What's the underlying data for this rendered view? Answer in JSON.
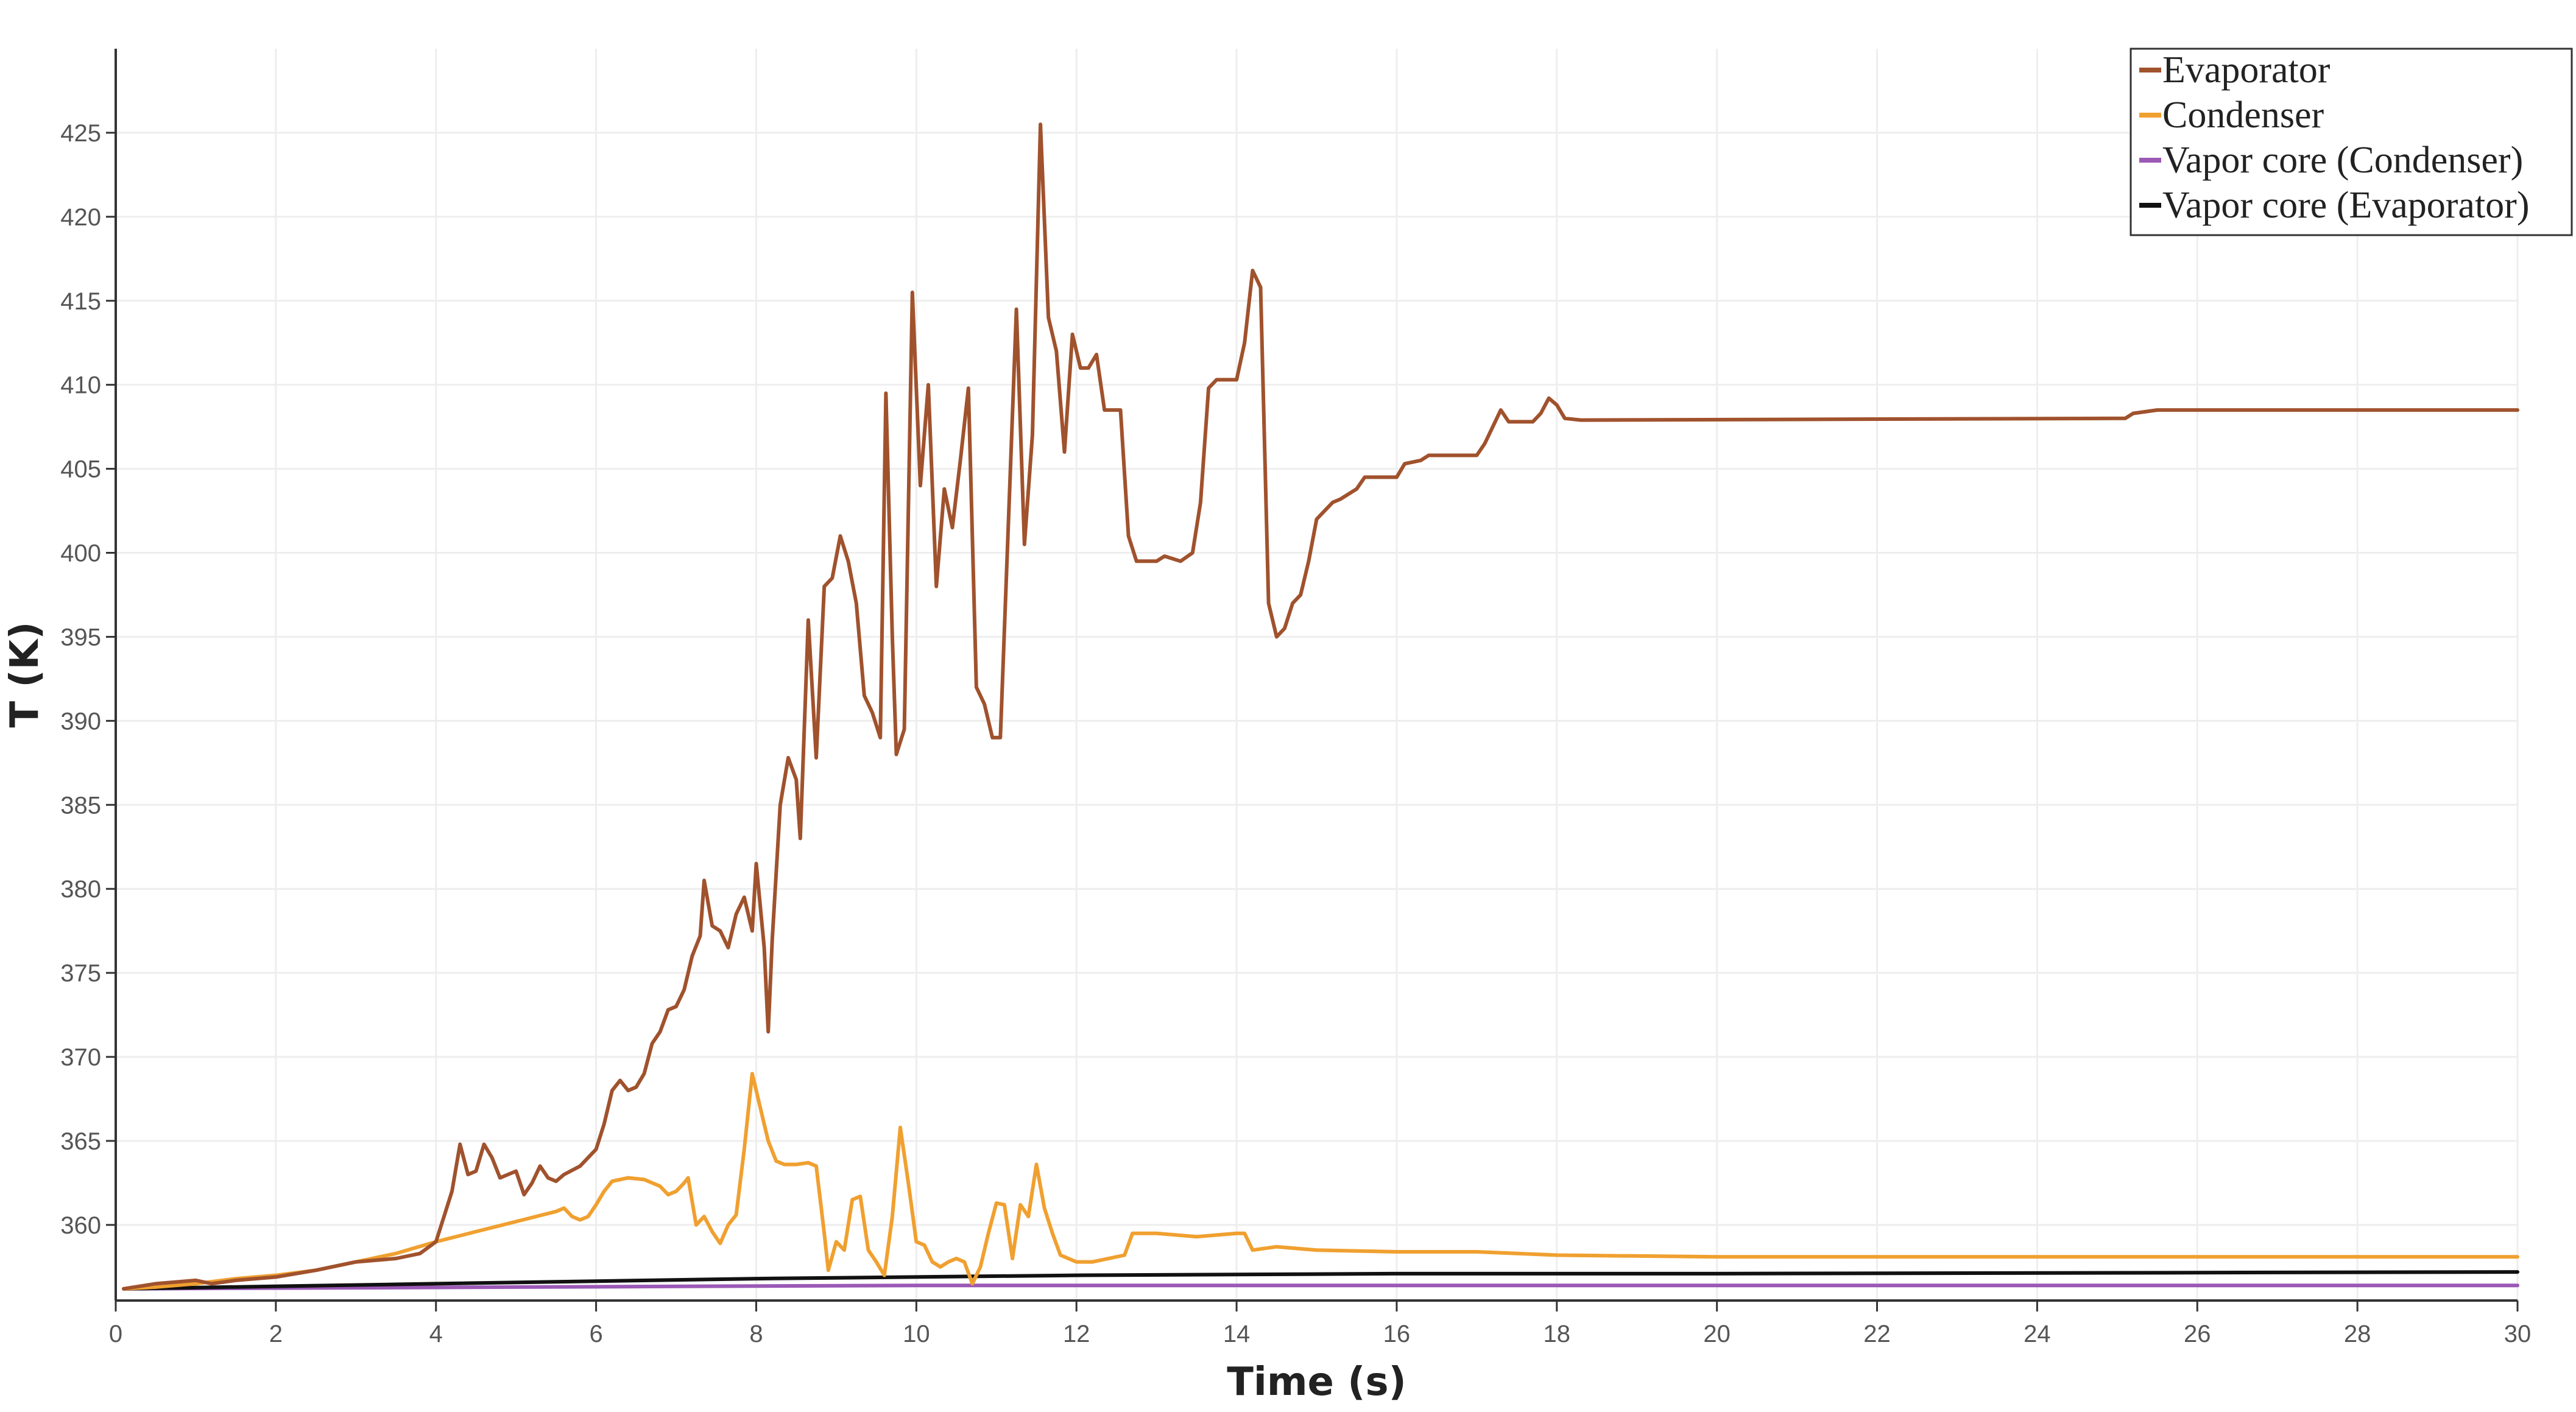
{
  "chart_data": {
    "type": "line",
    "title": "",
    "xlabel": "Time (s)",
    "ylabel": "T (K)",
    "xlim": [
      0,
      30
    ],
    "ylim": [
      355.5,
      430
    ],
    "grid": true,
    "legend_position": "top-right",
    "x_ticks": [
      "0",
      "2",
      "4",
      "6",
      "8",
      "10",
      "12",
      "14",
      "16",
      "18",
      "20",
      "22",
      "24",
      "26",
      "28",
      "30"
    ],
    "y_ticks": [
      "360",
      "365",
      "370",
      "375",
      "380",
      "385",
      "390",
      "395",
      "400",
      "405",
      "410",
      "415",
      "420",
      "425"
    ],
    "series": [
      {
        "name": "Evaporator",
        "color": "#a0522d",
        "points": [
          [
            0.1,
            356.2
          ],
          [
            0.5,
            356.5
          ],
          [
            1.0,
            356.7
          ],
          [
            1.2,
            356.5
          ],
          [
            1.5,
            356.7
          ],
          [
            2.0,
            356.9
          ],
          [
            2.5,
            357.3
          ],
          [
            3.0,
            357.8
          ],
          [
            3.5,
            358.0
          ],
          [
            3.8,
            358.3
          ],
          [
            4.0,
            359.0
          ],
          [
            4.1,
            360.5
          ],
          [
            4.2,
            362.0
          ],
          [
            4.3,
            364.8
          ],
          [
            4.4,
            363.0
          ],
          [
            4.5,
            363.2
          ],
          [
            4.6,
            364.8
          ],
          [
            4.7,
            364.0
          ],
          [
            4.8,
            362.8
          ],
          [
            4.9,
            363.0
          ],
          [
            5.0,
            363.2
          ],
          [
            5.1,
            361.8
          ],
          [
            5.2,
            362.5
          ],
          [
            5.3,
            363.5
          ],
          [
            5.4,
            362.8
          ],
          [
            5.5,
            362.6
          ],
          [
            5.6,
            363.0
          ],
          [
            5.8,
            363.5
          ],
          [
            6.0,
            364.5
          ],
          [
            6.1,
            366.0
          ],
          [
            6.2,
            368.0
          ],
          [
            6.3,
            368.6
          ],
          [
            6.4,
            368.0
          ],
          [
            6.5,
            368.2
          ],
          [
            6.6,
            369.0
          ],
          [
            6.7,
            370.8
          ],
          [
            6.8,
            371.5
          ],
          [
            6.9,
            372.8
          ],
          [
            7.0,
            373.0
          ],
          [
            7.1,
            374.0
          ],
          [
            7.2,
            376.0
          ],
          [
            7.3,
            377.2
          ],
          [
            7.35,
            380.5
          ],
          [
            7.45,
            377.8
          ],
          [
            7.55,
            377.5
          ],
          [
            7.65,
            376.5
          ],
          [
            7.75,
            378.5
          ],
          [
            7.85,
            379.5
          ],
          [
            7.95,
            377.5
          ],
          [
            8.0,
            381.5
          ],
          [
            8.1,
            376.5
          ],
          [
            8.15,
            371.5
          ],
          [
            8.2,
            377.0
          ],
          [
            8.3,
            385.0
          ],
          [
            8.4,
            387.8
          ],
          [
            8.5,
            386.5
          ],
          [
            8.55,
            383.0
          ],
          [
            8.65,
            396.0
          ],
          [
            8.75,
            387.8
          ],
          [
            8.85,
            398.0
          ],
          [
            8.95,
            398.5
          ],
          [
            9.05,
            401.0
          ],
          [
            9.15,
            399.5
          ],
          [
            9.25,
            397.0
          ],
          [
            9.35,
            391.5
          ],
          [
            9.45,
            390.5
          ],
          [
            9.55,
            389.0
          ],
          [
            9.62,
            409.5
          ],
          [
            9.7,
            395.0
          ],
          [
            9.75,
            388.0
          ],
          [
            9.85,
            389.5
          ],
          [
            9.95,
            415.5
          ],
          [
            10.05,
            404.0
          ],
          [
            10.15,
            410.0
          ],
          [
            10.25,
            398.0
          ],
          [
            10.35,
            403.8
          ],
          [
            10.45,
            401.5
          ],
          [
            10.55,
            405.5
          ],
          [
            10.65,
            409.8
          ],
          [
            10.75,
            392.0
          ],
          [
            10.85,
            391.0
          ],
          [
            10.95,
            389.0
          ],
          [
            11.05,
            389.0
          ],
          [
            11.25,
            414.5
          ],
          [
            11.35,
            400.5
          ],
          [
            11.45,
            407.0
          ],
          [
            11.55,
            425.5
          ],
          [
            11.65,
            414.0
          ],
          [
            11.75,
            412.0
          ],
          [
            11.85,
            406.0
          ],
          [
            11.95,
            413.0
          ],
          [
            12.05,
            411.0
          ],
          [
            12.15,
            411.0
          ],
          [
            12.25,
            411.8
          ],
          [
            12.35,
            408.5
          ],
          [
            12.55,
            408.5
          ],
          [
            12.65,
            401.0
          ],
          [
            12.75,
            399.5
          ],
          [
            13.0,
            399.5
          ],
          [
            13.1,
            399.8
          ],
          [
            13.3,
            399.5
          ],
          [
            13.45,
            400.0
          ],
          [
            13.55,
            403.0
          ],
          [
            13.65,
            409.8
          ],
          [
            13.75,
            410.3
          ],
          [
            14.0,
            410.3
          ],
          [
            14.1,
            412.5
          ],
          [
            14.2,
            416.8
          ],
          [
            14.3,
            415.8
          ],
          [
            14.4,
            397.0
          ],
          [
            14.5,
            395.0
          ],
          [
            14.6,
            395.5
          ],
          [
            14.7,
            397.0
          ],
          [
            14.8,
            397.5
          ],
          [
            14.9,
            399.5
          ],
          [
            15.0,
            402.0
          ],
          [
            15.1,
            402.5
          ],
          [
            15.2,
            403.0
          ],
          [
            15.3,
            403.2
          ],
          [
            15.5,
            403.8
          ],
          [
            15.6,
            404.5
          ],
          [
            16.0,
            404.5
          ],
          [
            16.1,
            405.3
          ],
          [
            16.3,
            405.5
          ],
          [
            16.4,
            405.8
          ],
          [
            17.0,
            405.8
          ],
          [
            17.1,
            406.5
          ],
          [
            17.2,
            407.5
          ],
          [
            17.3,
            408.5
          ],
          [
            17.4,
            407.8
          ],
          [
            17.7,
            407.8
          ],
          [
            17.8,
            408.3
          ],
          [
            17.9,
            409.2
          ],
          [
            18.0,
            408.8
          ],
          [
            18.1,
            408.0
          ],
          [
            18.3,
            407.9
          ],
          [
            25.1,
            408.0
          ],
          [
            25.2,
            408.3
          ],
          [
            25.5,
            408.5
          ],
          [
            30.0,
            408.5
          ]
        ]
      },
      {
        "name": "Condenser",
        "color": "#f0a030",
        "points": [
          [
            0.1,
            356.2
          ],
          [
            0.5,
            356.3
          ],
          [
            1.0,
            356.5
          ],
          [
            1.5,
            356.8
          ],
          [
            2.0,
            357.0
          ],
          [
            2.5,
            357.3
          ],
          [
            3.0,
            357.8
          ],
          [
            3.5,
            358.3
          ],
          [
            4.0,
            359.0
          ],
          [
            4.5,
            359.6
          ],
          [
            5.0,
            360.2
          ],
          [
            5.5,
            360.8
          ],
          [
            5.6,
            361.0
          ],
          [
            5.7,
            360.5
          ],
          [
            5.8,
            360.3
          ],
          [
            5.9,
            360.5
          ],
          [
            6.0,
            361.2
          ],
          [
            6.1,
            362.0
          ],
          [
            6.2,
            362.6
          ],
          [
            6.4,
            362.8
          ],
          [
            6.6,
            362.7
          ],
          [
            6.8,
            362.3
          ],
          [
            6.9,
            361.8
          ],
          [
            7.0,
            362.0
          ],
          [
            7.1,
            362.5
          ],
          [
            7.15,
            362.8
          ],
          [
            7.25,
            360.0
          ],
          [
            7.35,
            360.5
          ],
          [
            7.45,
            359.6
          ],
          [
            7.55,
            358.9
          ],
          [
            7.65,
            360.0
          ],
          [
            7.75,
            360.6
          ],
          [
            7.85,
            364.5
          ],
          [
            7.95,
            369.0
          ],
          [
            8.05,
            367.0
          ],
          [
            8.15,
            365.0
          ],
          [
            8.25,
            363.8
          ],
          [
            8.35,
            363.6
          ],
          [
            8.5,
            363.6
          ],
          [
            8.65,
            363.7
          ],
          [
            8.75,
            363.5
          ],
          [
            8.85,
            359.5
          ],
          [
            8.9,
            357.3
          ],
          [
            9.0,
            359.0
          ],
          [
            9.1,
            358.5
          ],
          [
            9.2,
            361.5
          ],
          [
            9.3,
            361.7
          ],
          [
            9.4,
            358.5
          ],
          [
            9.5,
            357.8
          ],
          [
            9.6,
            357.0
          ],
          [
            9.7,
            360.5
          ],
          [
            9.8,
            365.8
          ],
          [
            9.9,
            362.5
          ],
          [
            10.0,
            359.0
          ],
          [
            10.1,
            358.8
          ],
          [
            10.2,
            357.8
          ],
          [
            10.3,
            357.5
          ],
          [
            10.4,
            357.8
          ],
          [
            10.5,
            358.0
          ],
          [
            10.6,
            357.8
          ],
          [
            10.7,
            356.5
          ],
          [
            10.8,
            357.5
          ],
          [
            10.9,
            359.5
          ],
          [
            11.0,
            361.3
          ],
          [
            11.1,
            361.2
          ],
          [
            11.2,
            358.0
          ],
          [
            11.3,
            361.2
          ],
          [
            11.4,
            360.5
          ],
          [
            11.5,
            363.6
          ],
          [
            11.6,
            361.0
          ],
          [
            11.7,
            359.5
          ],
          [
            11.8,
            358.2
          ],
          [
            12.0,
            357.8
          ],
          [
            12.2,
            357.8
          ],
          [
            12.6,
            358.2
          ],
          [
            12.7,
            359.5
          ],
          [
            13.0,
            359.5
          ],
          [
            13.5,
            359.3
          ],
          [
            14.0,
            359.5
          ],
          [
            14.1,
            359.5
          ],
          [
            14.2,
            358.5
          ],
          [
            14.5,
            358.7
          ],
          [
            15.0,
            358.5
          ],
          [
            16.0,
            358.4
          ],
          [
            17.0,
            358.4
          ],
          [
            18.0,
            358.2
          ],
          [
            20.0,
            358.1
          ],
          [
            30.0,
            358.1
          ]
        ]
      },
      {
        "name": "Vapor core (Condenser)",
        "color": "#9b59b6",
        "points": [
          [
            0.1,
            356.2
          ],
          [
            5.0,
            356.3
          ],
          [
            10.0,
            356.4
          ],
          [
            15.0,
            356.4
          ],
          [
            20.0,
            356.4
          ],
          [
            30.0,
            356.4
          ]
        ]
      },
      {
        "name": "Vapor core (Evaporator)",
        "color": "#111111",
        "points": [
          [
            0.1,
            356.2
          ],
          [
            4.0,
            356.5
          ],
          [
            8.0,
            356.8
          ],
          [
            12.0,
            357.0
          ],
          [
            16.0,
            357.1
          ],
          [
            20.0,
            357.1
          ],
          [
            30.0,
            357.2
          ]
        ]
      }
    ]
  }
}
